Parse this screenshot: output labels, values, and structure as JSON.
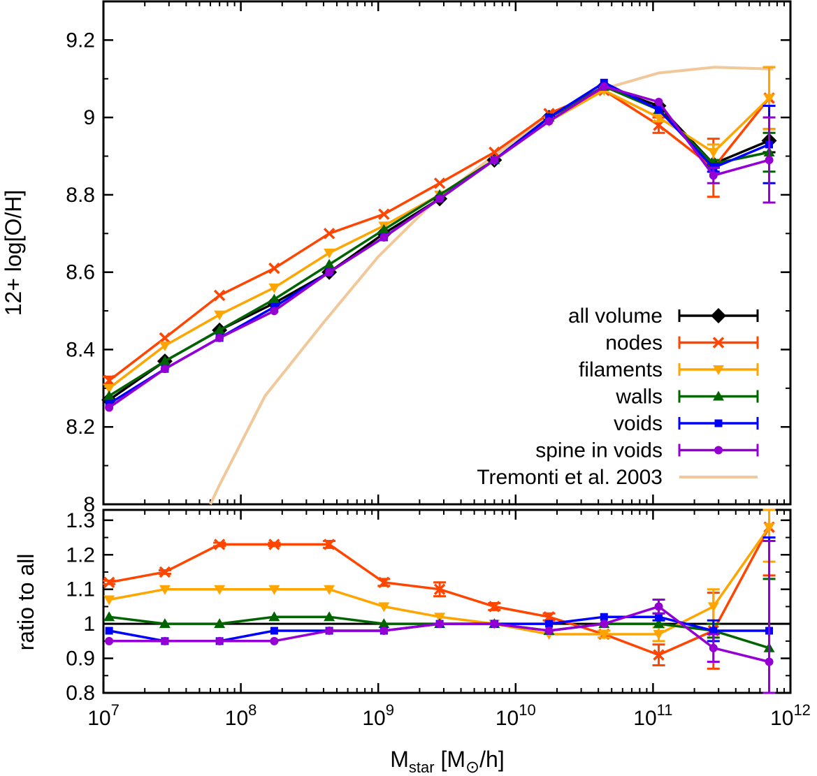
{
  "chart_data": [
    {
      "type": "line",
      "panel": "top",
      "xscale": "log",
      "xlim": [
        10000000,
        1000000000000
      ],
      "ylim": [
        8.0,
        9.3
      ],
      "ylabel": "12+ log[O/H]",
      "yticks": [
        "8",
        "8.2",
        "8.4",
        "8.6",
        "8.8",
        "9",
        "9.2"
      ],
      "x": [
        11000000,
        28000000,
        70000000,
        175000000,
        440000000,
        1100000000,
        2800000000,
        7000000000,
        17500000000,
        44000000000,
        110000000000,
        275000000000,
        700000000000
      ],
      "series": [
        {
          "name": "all volume",
          "color": "#000000",
          "marker": "diamond",
          "values": [
            8.27,
            8.37,
            8.45,
            8.52,
            8.6,
            8.7,
            8.79,
            8.89,
            9.0,
            9.08,
            9.03,
            8.88,
            8.94
          ],
          "err": [
            0,
            0,
            0,
            0,
            0,
            0,
            0,
            0,
            0,
            0,
            0,
            0.01,
            0.03
          ]
        },
        {
          "name": "nodes",
          "color": "#ff4500",
          "marker": "cross",
          "values": [
            8.32,
            8.43,
            8.54,
            8.61,
            8.7,
            8.75,
            8.83,
            8.91,
            9.01,
            9.07,
            8.98,
            8.87,
            9.05
          ],
          "err": [
            0.01,
            0,
            0,
            0,
            0,
            0,
            0,
            0,
            0,
            0,
            0.02,
            0.075,
            0.08
          ]
        },
        {
          "name": "filaments",
          "color": "#ffa500",
          "marker": "triangle-down",
          "values": [
            8.3,
            8.41,
            8.49,
            8.56,
            8.65,
            8.72,
            8.8,
            8.89,
            8.99,
            9.07,
            9.0,
            8.91,
            9.05
          ],
          "err": [
            0,
            0,
            0,
            0,
            0,
            0,
            0,
            0,
            0,
            0,
            0.01,
            0.02,
            0.08
          ]
        },
        {
          "name": "walls",
          "color": "#006400",
          "marker": "triangle-up",
          "values": [
            8.28,
            8.37,
            8.45,
            8.53,
            8.62,
            8.71,
            8.8,
            8.89,
            9.0,
            9.08,
            9.02,
            8.88,
            8.91
          ],
          "err": [
            0,
            0,
            0,
            0,
            0,
            0,
            0,
            0,
            0,
            0,
            0,
            0.01,
            0.05
          ]
        },
        {
          "name": "voids",
          "color": "#0000ff",
          "marker": "square",
          "values": [
            8.26,
            8.35,
            8.43,
            8.51,
            8.6,
            8.69,
            8.79,
            8.89,
            9.0,
            9.09,
            9.02,
            8.87,
            8.93
          ],
          "err": [
            0,
            0,
            0,
            0,
            0,
            0,
            0,
            0,
            0,
            0,
            0,
            0.01,
            0.1
          ]
        },
        {
          "name": "spine in voids",
          "color": "#9400d3",
          "marker": "circle",
          "values": [
            8.25,
            8.35,
            8.43,
            8.5,
            8.6,
            8.69,
            8.79,
            8.89,
            8.99,
            9.08,
            9.04,
            8.85,
            8.89
          ],
          "err": [
            0,
            0,
            0,
            0,
            0,
            0,
            0,
            0,
            0,
            0,
            0,
            0.02,
            0.11
          ]
        }
      ],
      "reference": {
        "name": "Tremonti et al. 2003",
        "color": "#f0c89a",
        "x": [
          60000000,
          70000000,
          150000000,
          400000000,
          1000000000,
          2500000000,
          6300000000,
          15800000000,
          40000000000,
          110000000000,
          280000000000,
          750000000000
        ],
        "values": [
          8.0,
          8.05,
          8.28,
          8.47,
          8.64,
          8.78,
          8.89,
          8.99,
          9.07,
          9.115,
          9.13,
          9.125
        ]
      },
      "legend": [
        "all volume",
        "nodes",
        "filaments",
        "walls",
        "voids",
        "spine in voids",
        "Tremonti et al. 2003"
      ],
      "legend_placement": "right"
    },
    {
      "type": "line",
      "panel": "bottom",
      "xscale": "log",
      "xlim": [
        10000000,
        1000000000000
      ],
      "ylim": [
        0.8,
        1.33
      ],
      "ylabel": "ratio to all",
      "xlabel_main": "M",
      "xlabel_sub": "star",
      "xlabel_rest": " [M",
      "xlabel_sun": "⊙",
      "xlabel_end": "/h]",
      "yticks": [
        "0.8",
        "0.9",
        "1",
        "1.1",
        "1.2",
        "1.3"
      ],
      "xtick_base": "10",
      "xtick_exponents": [
        "7",
        "8",
        "9",
        "10",
        "11",
        "12"
      ],
      "x": [
        11000000,
        28000000,
        70000000,
        175000000,
        440000000,
        1100000000,
        2800000000,
        7000000000,
        17500000000,
        44000000000,
        110000000000,
        275000000000,
        700000000000
      ],
      "series": [
        {
          "name": "all volume",
          "color": "#000000",
          "constant": 1.0
        },
        {
          "name": "nodes",
          "color": "#ff4500",
          "marker": "cross",
          "values": [
            1.12,
            1.15,
            1.23,
            1.23,
            1.23,
            1.12,
            1.1,
            1.05,
            1.02,
            0.97,
            0.91,
            0.98,
            1.28
          ],
          "err": [
            0.005,
            0.005,
            0.005,
            0.005,
            0.01,
            0.01,
            0.02,
            0.01,
            0.01,
            0.01,
            0.03,
            0.11,
            0.14
          ]
        },
        {
          "name": "filaments",
          "color": "#ffa500",
          "marker": "triangle-down",
          "values": [
            1.07,
            1.1,
            1.1,
            1.1,
            1.1,
            1.05,
            1.02,
            1.0,
            0.97,
            0.97,
            0.97,
            1.05,
            1.28
          ],
          "err": [
            0,
            0,
            0,
            0,
            0,
            0,
            0,
            0,
            0,
            0.01,
            0.02,
            0.05,
            0.1
          ]
        },
        {
          "name": "walls",
          "color": "#006400",
          "marker": "triangle-up",
          "values": [
            1.02,
            1.0,
            1.0,
            1.02,
            1.02,
            1.0,
            1.0,
            1.0,
            0.98,
            1.0,
            1.0,
            0.98,
            0.93
          ],
          "err": [
            0,
            0,
            0,
            0,
            0,
            0,
            0,
            0,
            0,
            0,
            0,
            0.02,
            0.2
          ]
        },
        {
          "name": "voids",
          "color": "#0000ff",
          "marker": "square",
          "values": [
            0.98,
            0.95,
            0.95,
            0.98,
            0.98,
            0.98,
            1.0,
            1.0,
            1.0,
            1.02,
            1.02,
            0.98,
            0.98
          ],
          "err": [
            0,
            0,
            0,
            0,
            0,
            0,
            0,
            0,
            0,
            0,
            0.01,
            0.03,
            0.27
          ]
        },
        {
          "name": "spine in voids",
          "color": "#9400d3",
          "marker": "circle",
          "values": [
            0.95,
            0.95,
            0.95,
            0.95,
            0.98,
            0.98,
            1.0,
            1.0,
            0.98,
            1.0,
            1.05,
            0.93,
            0.89
          ],
          "err": [
            0,
            0,
            0,
            0,
            0,
            0,
            0,
            0,
            0,
            0,
            0.02,
            0.04,
            0.35
          ]
        }
      ]
    }
  ]
}
